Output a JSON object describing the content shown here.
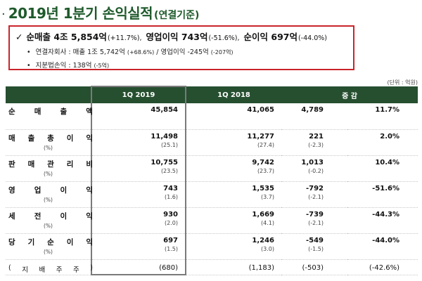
{
  "header": {
    "bullet": "·",
    "title": "2019년 1분기 손익실적",
    "subtitle": "(연결기준)"
  },
  "summary": {
    "check_icon": "check-icon",
    "revenue_label": "순매출 4조 5,854억",
    "revenue_change": "(+11.7%),",
    "op_label": "영업이익 743억",
    "op_change": "(-51.6%),",
    "net_label": "순이익 697억",
    "net_change": "(-44.0%)",
    "subsidiary_label": "연결자회사 : 매출 1조 5,742억",
    "subsidiary_sales_change": "(+68.6%)",
    "subsidiary_op": "/ 영업이익 -245억",
    "subsidiary_op_change": "(-207억)",
    "equity_label": "지분법손익 : 138억",
    "equity_change": "(-5억)"
  },
  "unit_note": "(단위 : 억원)",
  "table": {
    "headers": [
      "",
      "1Q 2019",
      "1Q 2018",
      "증 감"
    ],
    "rows": [
      {
        "label_chars": [
          "순",
          "매",
          "출",
          "액"
        ],
        "v2019": "45,854",
        "v2018": "41,065",
        "diff": "4,789",
        "rate": "11.7%",
        "p2019": "",
        "p2018": "",
        "pdiff": "",
        "pct_label": ""
      },
      {
        "label_chars": [
          "매",
          "출",
          "총",
          "이",
          "익"
        ],
        "v2019": "11,498",
        "v2018": "11,277",
        "diff": "221",
        "rate": "2.0%",
        "p2019": "(25.1)",
        "p2018": "(27.4)",
        "pdiff": "(-2.3)",
        "pct_label": "(%)"
      },
      {
        "label_chars": [
          "판",
          "매",
          "관",
          "리",
          "비"
        ],
        "v2019": "10,755",
        "v2018": "9,742",
        "diff": "1,013",
        "rate": "10.4%",
        "p2019": "(23.5)",
        "p2018": "(23.7)",
        "pdiff": "(-0.2)",
        "pct_label": "(%)"
      },
      {
        "label_chars": [
          "영",
          "업",
          "이",
          "익"
        ],
        "v2019": "743",
        "v2018": "1,535",
        "diff": "-792",
        "rate": "-51.6%",
        "p2019": "(1.6)",
        "p2018": "(3.7)",
        "pdiff": "(-2.1)",
        "pct_label": "(%)"
      },
      {
        "label_chars": [
          "세",
          "전",
          "이",
          "익"
        ],
        "v2019": "930",
        "v2018": "1,669",
        "diff": "-739",
        "rate": "-44.3%",
        "p2019": "(2.0)",
        "p2018": "(4.1)",
        "pdiff": "(-2.1)",
        "pct_label": "(%)"
      },
      {
        "label_chars": [
          "당",
          "기",
          "순",
          "이",
          "익"
        ],
        "v2019": "697",
        "v2018": "1,246",
        "diff": "-549",
        "rate": "-44.0%",
        "p2019": "(1.5)",
        "p2018": "(3.0)",
        "pdiff": "(-1.5)",
        "pct_label": "(%)"
      }
    ],
    "last_row": {
      "label_chars": [
        "(",
        "지",
        "배",
        "주",
        "주",
        ")"
      ],
      "v2019": "(680)",
      "v2018": "(1,183)",
      "diff": "(-503)",
      "rate": "(-42.6%)"
    }
  }
}
